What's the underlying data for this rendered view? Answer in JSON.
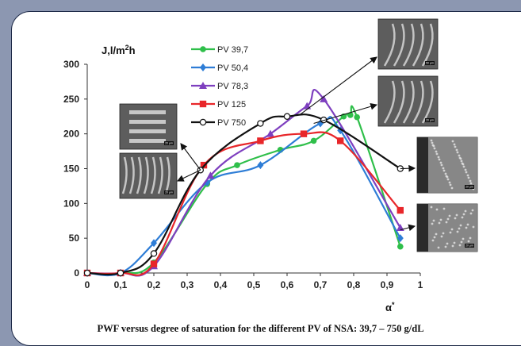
{
  "chart_data": {
    "type": "line",
    "caption": "PWF versus degree of saturation for the different PV of NSA: 39,7 – 750 g/dL",
    "ylabel_main": "J,l/m",
    "ylabel_sup": "2",
    "ylabel_tail": "h",
    "xlabel_main": "α",
    "xlabel_sup": "*",
    "xlim": [
      0,
      1
    ],
    "ylim": [
      0,
      300
    ],
    "xticks": [
      "0",
      "0,1",
      "0,2",
      "0,3",
      "0,4",
      "0,5",
      "0,6",
      "0,7",
      "0,8",
      "0,9",
      "1"
    ],
    "yticks": [
      "0",
      "50",
      "100",
      "150",
      "200",
      "250",
      "300"
    ],
    "grid": false,
    "legend_position": "top-left",
    "series": [
      {
        "name": "PV 39,7",
        "color": "#2fbf4a",
        "marker": "circle-filled",
        "x": [
          0,
          0.1,
          0.2,
          0.36,
          0.45,
          0.58,
          0.68,
          0.77,
          0.79,
          0.81,
          0.94
        ],
        "y": [
          0,
          0,
          15,
          128,
          155,
          177,
          190,
          225,
          227,
          224,
          38
        ]
      },
      {
        "name": "PV 50,4",
        "color": "#2e7dd6",
        "marker": "diamond",
        "x": [
          0,
          0.1,
          0.2,
          0.36,
          0.52,
          0.7,
          0.76,
          0.94
        ],
        "y": [
          0,
          0,
          43,
          130,
          155,
          215,
          205,
          50
        ]
      },
      {
        "name": "PV 78,3",
        "color": "#7e3fbf",
        "marker": "triangle",
        "x": [
          0,
          0.1,
          0.2,
          0.37,
          0.55,
          0.66,
          0.71,
          0.94
        ],
        "y": [
          0,
          0,
          10,
          140,
          200,
          240,
          250,
          65
        ]
      },
      {
        "name": "PV 125",
        "color": "#e8262a",
        "marker": "square",
        "x": [
          0,
          0.1,
          0.2,
          0.35,
          0.52,
          0.65,
          0.76,
          0.94
        ],
        "y": [
          0,
          0,
          13,
          155,
          190,
          200,
          190,
          90
        ]
      },
      {
        "name": "PV 750",
        "color": "#111111",
        "marker": "circle-open",
        "x": [
          0,
          0.1,
          0.2,
          0.34,
          0.52,
          0.6,
          0.71,
          0.94
        ],
        "y": [
          0,
          0,
          28,
          148,
          215,
          225,
          220,
          150
        ]
      }
    ],
    "sem_insets": [
      {
        "name": "sem-inset-top-left",
        "scale_label": "20 μm",
        "pointer_target": [
          0.34,
          148
        ]
      },
      {
        "name": "sem-inset-mid-left",
        "scale_label": "20 μm",
        "pointer_target": [
          0.34,
          148
        ]
      },
      {
        "name": "sem-inset-top-right-1",
        "scale_label": "50 μm",
        "pointer_target": [
          0.64,
          228
        ]
      },
      {
        "name": "sem-inset-top-right-2",
        "scale_label": "20 μm",
        "pointer_target": [
          0.68,
          215
        ]
      },
      {
        "name": "sem-inset-right-1",
        "scale_label": "20 μm",
        "pointer_target": [
          0.94,
          150
        ]
      },
      {
        "name": "sem-inset-right-2",
        "scale_label": "20 μm",
        "pointer_target": [
          0.94,
          60
        ]
      }
    ]
  }
}
